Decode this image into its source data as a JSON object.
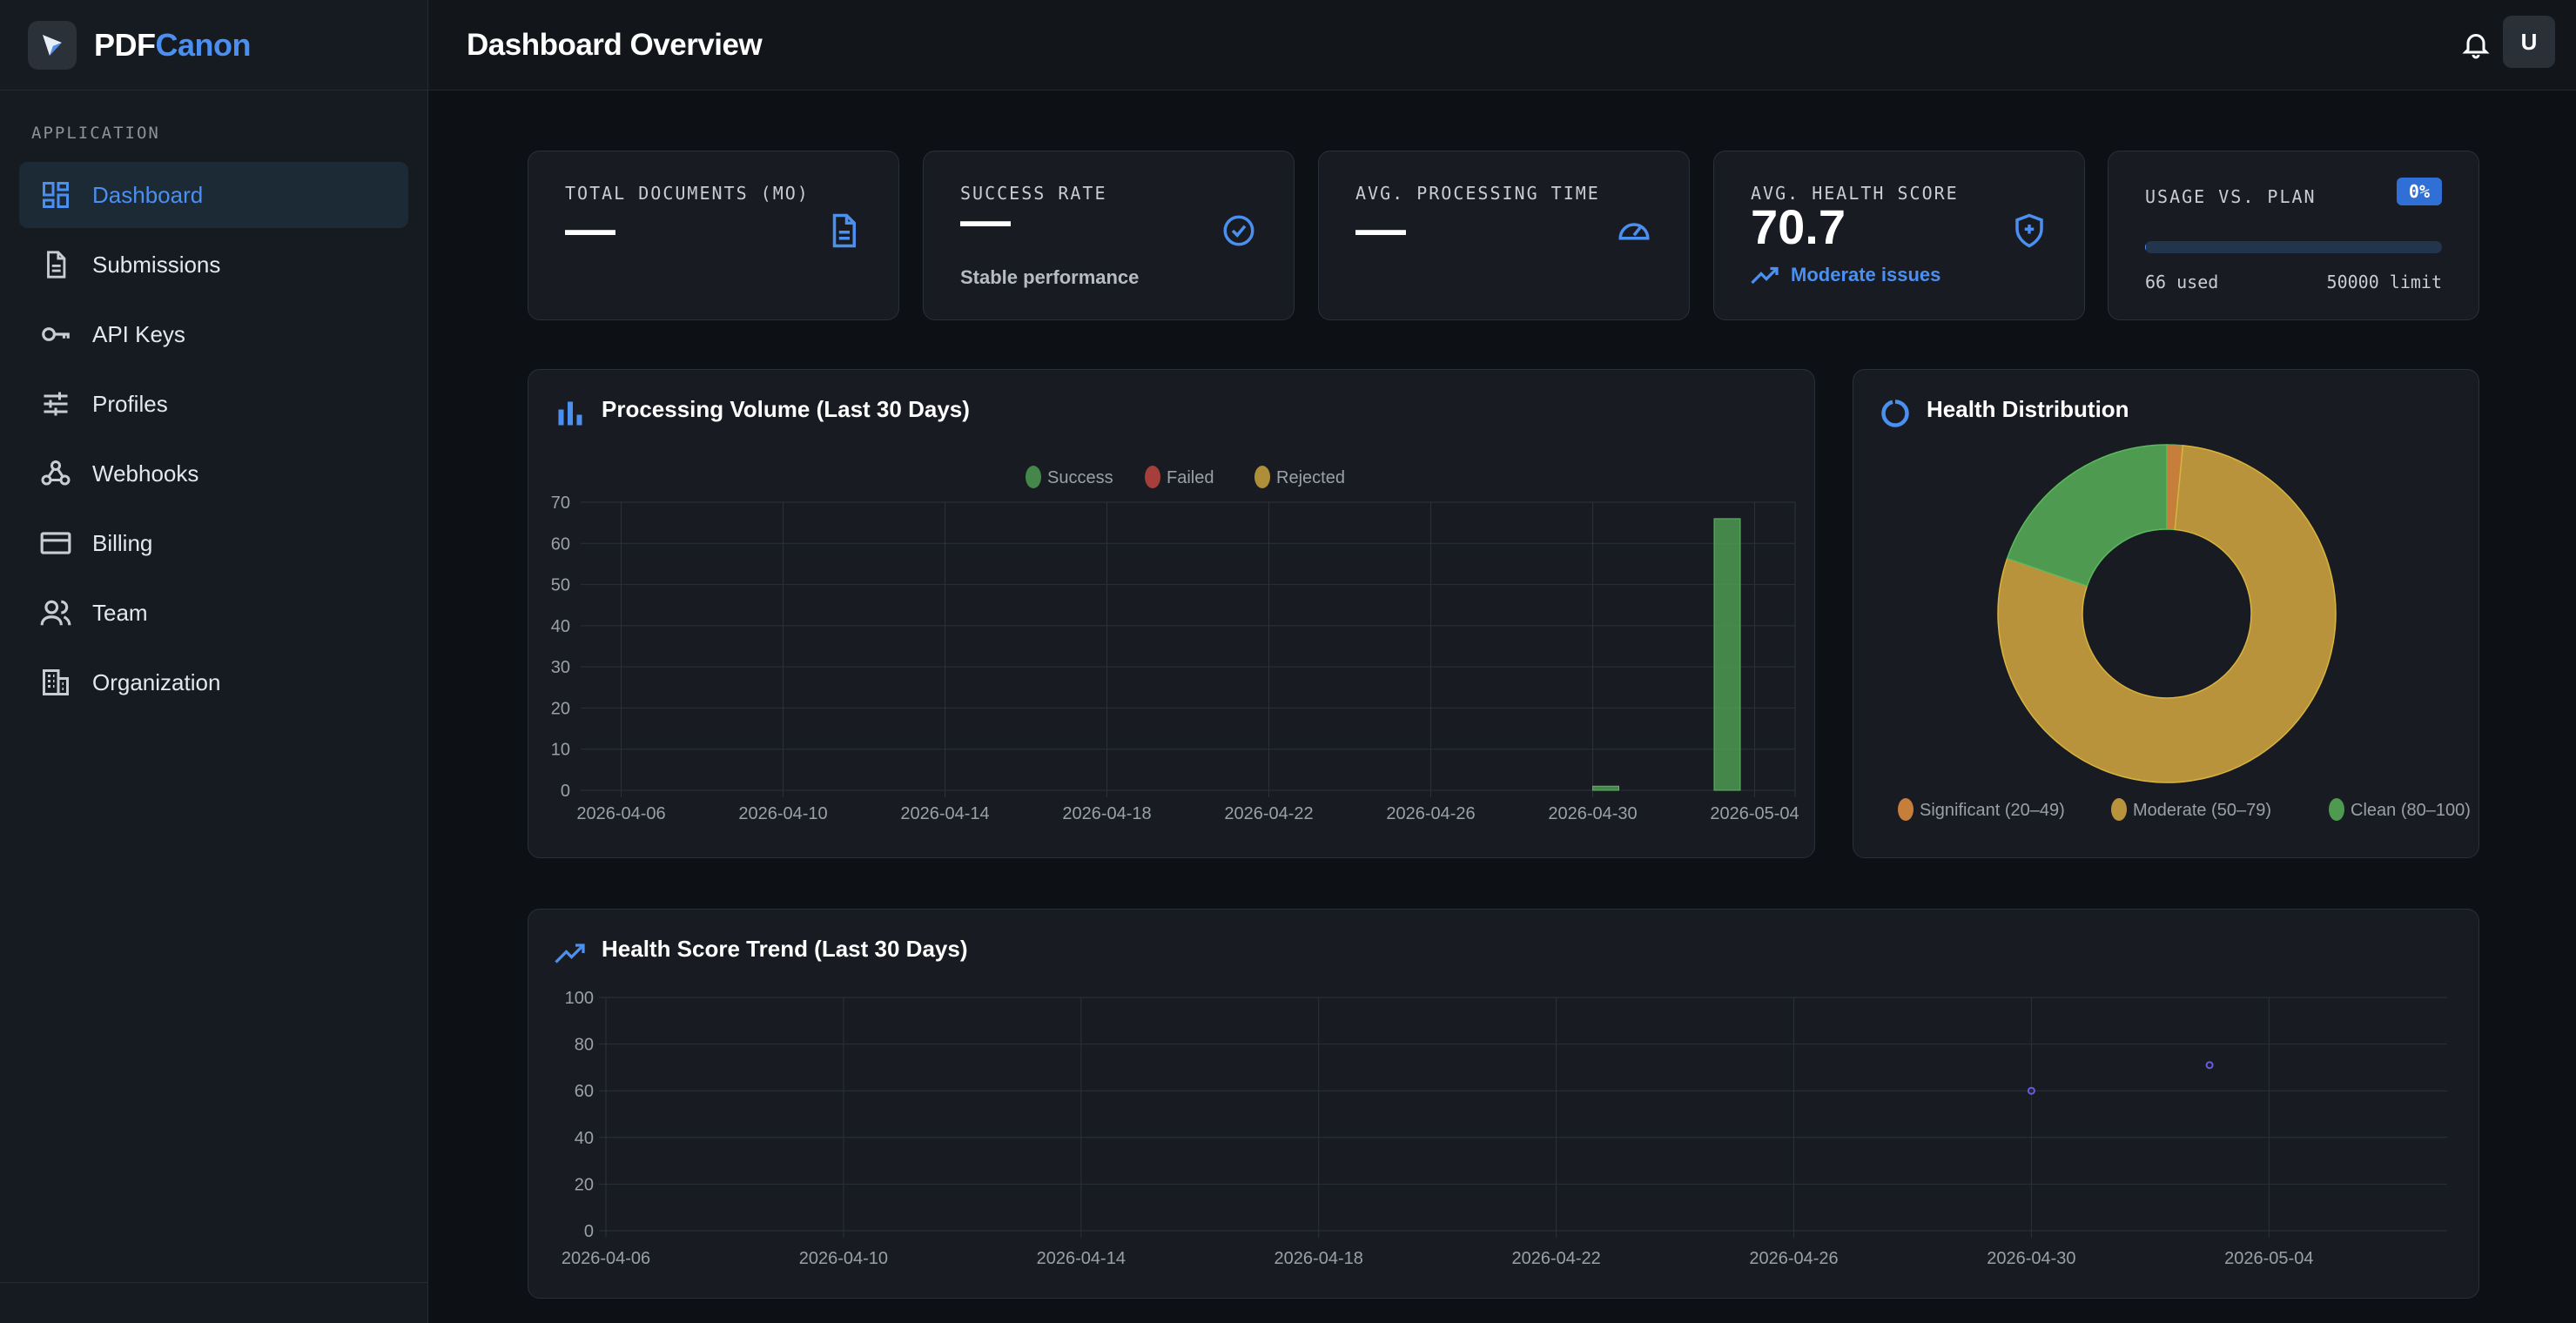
{
  "brand": {
    "part1": "PDF",
    "part2": "Canon"
  },
  "header": {
    "title": "Dashboard Overview",
    "avatar_initial": "U"
  },
  "sidebar": {
    "section": "APPLICATION",
    "items": [
      {
        "label": "Dashboard",
        "icon": "dashboard-icon",
        "active": true
      },
      {
        "label": "Submissions",
        "icon": "document-icon"
      },
      {
        "label": "API Keys",
        "icon": "key-icon"
      },
      {
        "label": "Profiles",
        "icon": "sliders-icon"
      },
      {
        "label": "Webhooks",
        "icon": "webhook-icon"
      },
      {
        "label": "Billing",
        "icon": "credit-card-icon"
      },
      {
        "label": "Team",
        "icon": "team-icon"
      },
      {
        "label": "Organization",
        "icon": "building-icon"
      }
    ]
  },
  "stats": {
    "total_docs": {
      "label": "TOTAL DOCUMENTS (MO)",
      "value": "—"
    },
    "success_rate": {
      "label": "SUCCESS RATE",
      "value": "—",
      "sub": "Stable performance"
    },
    "processing_time": {
      "label": "AVG. PROCESSING TIME",
      "value": "—"
    },
    "health_score": {
      "label": "AVG. HEALTH SCORE",
      "value": "70.7",
      "sub": "Moderate issues"
    },
    "usage": {
      "label": "USAGE VS. PLAN",
      "badge": "0%",
      "used": "66 used",
      "limit": "50000 limit",
      "fraction": 0.0013
    }
  },
  "colors": {
    "accent": "#4b8ff0",
    "success": "#4e9a51",
    "failed": "#c0453f",
    "rejected": "#c9a23c",
    "significant": "#c77e3a",
    "moderate": "#b8933c",
    "clean": "#4e9a51",
    "trend_point": "#6a5ae0"
  },
  "volume_chart": {
    "title": "Processing Volume (Last 30 Days)",
    "legend": [
      "Success",
      "Failed",
      "Rejected"
    ]
  },
  "health_dist": {
    "title": "Health Distribution",
    "legend": [
      "Significant (20–49)",
      "Moderate (50–79)",
      "Clean (80–100)"
    ]
  },
  "trend_chart": {
    "title": "Health Score Trend (Last 30 Days)"
  },
  "chart_data": [
    {
      "type": "bar",
      "title": "Processing Volume (Last 30 Days)",
      "x_tick_labels": [
        "2026-04-06",
        "2026-04-10",
        "2026-04-14",
        "2026-04-18",
        "2026-04-22",
        "2026-04-26",
        "2026-04-30",
        "2026-05-04"
      ],
      "ylim": [
        0,
        70
      ],
      "y_ticks": [
        0,
        10,
        20,
        30,
        40,
        50,
        60,
        70
      ],
      "x_range": [
        "2026-04-05",
        "2026-05-05"
      ],
      "legend_position": "top-center",
      "series": [
        {
          "name": "Success",
          "points": [
            {
              "x": "2026-04-30",
              "y": 1
            },
            {
              "x": "2026-05-03",
              "y": 66
            }
          ]
        },
        {
          "name": "Failed",
          "points": []
        },
        {
          "name": "Rejected",
          "points": []
        }
      ],
      "grid": true
    },
    {
      "type": "pie",
      "subtype": "doughnut",
      "title": "Health Distribution",
      "legend_position": "bottom",
      "slices": [
        {
          "label": "Significant (20–49)",
          "value": 1
        },
        {
          "label": "Moderate (50–79)",
          "value": 52
        },
        {
          "label": "Clean (80–100)",
          "value": 13
        }
      ]
    },
    {
      "type": "scatter",
      "title": "Health Score Trend (Last 30 Days)",
      "x_tick_labels": [
        "2026-04-06",
        "2026-04-10",
        "2026-04-14",
        "2026-04-18",
        "2026-04-22",
        "2026-04-26",
        "2026-04-30",
        "2026-05-04"
      ],
      "x_range": [
        "2026-04-06",
        "2026-05-07"
      ],
      "ylim": [
        0,
        100
      ],
      "y_ticks": [
        0,
        20,
        40,
        60,
        80,
        100
      ],
      "series": [
        {
          "points": [
            {
              "x": "2026-04-30",
              "y": 60
            },
            {
              "x": "2026-05-03",
              "y": 71
            }
          ]
        }
      ],
      "grid": true
    }
  ]
}
